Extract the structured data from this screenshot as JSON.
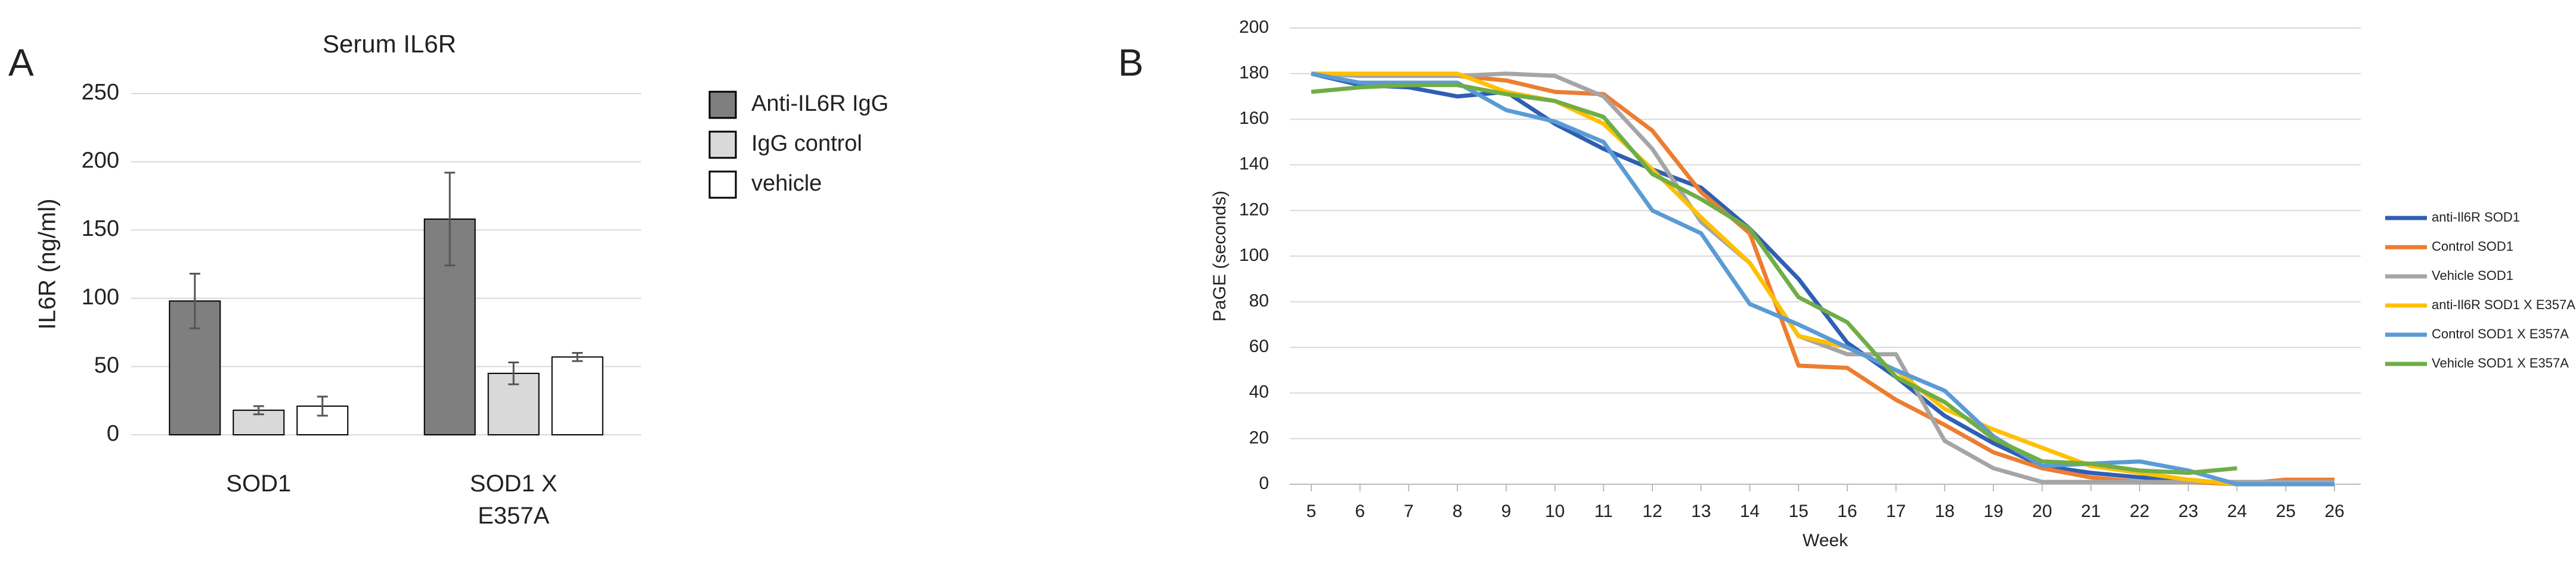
{
  "chart_data": [
    {
      "type": "bar",
      "panel_label": "A",
      "title": "Serum IL6R",
      "ylabel": "IL6R (ng/ml)",
      "categories": [
        "SOD1",
        "SOD1 X E357A"
      ],
      "series": [
        {
          "name": "Anti-IL6R IgG",
          "color": "#7f7f7f",
          "values": [
            98,
            158
          ],
          "errors": [
            20,
            34
          ]
        },
        {
          "name": "IgG control",
          "color": "#d9d9d9",
          "values": [
            18,
            45
          ],
          "errors": [
            3,
            8
          ]
        },
        {
          "name": "vehicle",
          "color": "#ffffff",
          "values": [
            21,
            57
          ],
          "errors": [
            7,
            3
          ]
        }
      ],
      "ylim": [
        0,
        250
      ],
      "yticks": [
        0,
        50,
        100,
        150,
        200,
        250
      ],
      "grid": true,
      "legend": "right"
    },
    {
      "type": "line",
      "panel_label": "B",
      "xlabel": "Week",
      "ylabel": "PaGE (seconds)",
      "x": [
        5,
        6,
        7,
        8,
        9,
        10,
        11,
        12,
        13,
        14,
        15,
        16,
        17,
        18,
        19,
        20,
        21,
        22,
        23,
        24,
        25,
        26
      ],
      "series": [
        {
          "name": "anti-Il6R SOD1",
          "color": "#2f5fb3",
          "values": [
            180,
            175,
            174,
            170,
            172,
            158,
            147,
            138,
            130,
            112,
            90,
            62,
            47,
            30,
            18,
            8,
            5,
            3,
            2,
            0,
            0,
            0
          ]
        },
        {
          "name": "Control SOD1",
          "color": "#ed7d31",
          "values": [
            180,
            179,
            179,
            179,
            177,
            172,
            171,
            155,
            128,
            110,
            52,
            51,
            37,
            26,
            14,
            7,
            3,
            1,
            1,
            0,
            2,
            2
          ]
        },
        {
          "name": "Vehicle SOD1",
          "color": "#a5a5a5",
          "values": [
            180,
            179,
            179,
            179,
            180,
            179,
            170,
            147,
            115,
            97,
            65,
            57,
            57,
            19,
            7,
            1,
            1,
            1,
            1,
            1,
            1,
            1
          ]
        },
        {
          "name": "anti-Il6R SOD1 X E357A",
          "color": "#ffc000",
          "values": [
            180,
            180,
            180,
            180,
            172,
            168,
            158,
            138,
            117,
            97,
            65,
            60,
            50,
            33,
            24,
            16,
            8,
            5,
            2,
            0,
            0,
            0
          ]
        },
        {
          "name": "Control SOD1 X E357A",
          "color": "#5b9bd5",
          "values": [
            180,
            176,
            176,
            176,
            164,
            159,
            150,
            120,
            110,
            79,
            70,
            60,
            50,
            41,
            21,
            8,
            9,
            10,
            6,
            0,
            0,
            0
          ]
        },
        {
          "name": "Vehicle SOD1 X E357A",
          "color": "#70ad47",
          "values": [
            172,
            174,
            175,
            175,
            171,
            168,
            161,
            136,
            125,
            112,
            82,
            71,
            47,
            36,
            20,
            10,
            9,
            6,
            5,
            7,
            null,
            null
          ]
        }
      ],
      "xlim": [
        5,
        26
      ],
      "xticks": [
        5,
        6,
        7,
        8,
        9,
        10,
        11,
        12,
        13,
        14,
        15,
        16,
        17,
        18,
        19,
        20,
        21,
        22,
        23,
        24,
        25,
        26
      ],
      "ylim": [
        0,
        200
      ],
      "yticks": [
        0,
        20,
        40,
        60,
        80,
        100,
        120,
        140,
        160,
        180,
        200
      ],
      "grid": true,
      "legend": "right"
    }
  ]
}
